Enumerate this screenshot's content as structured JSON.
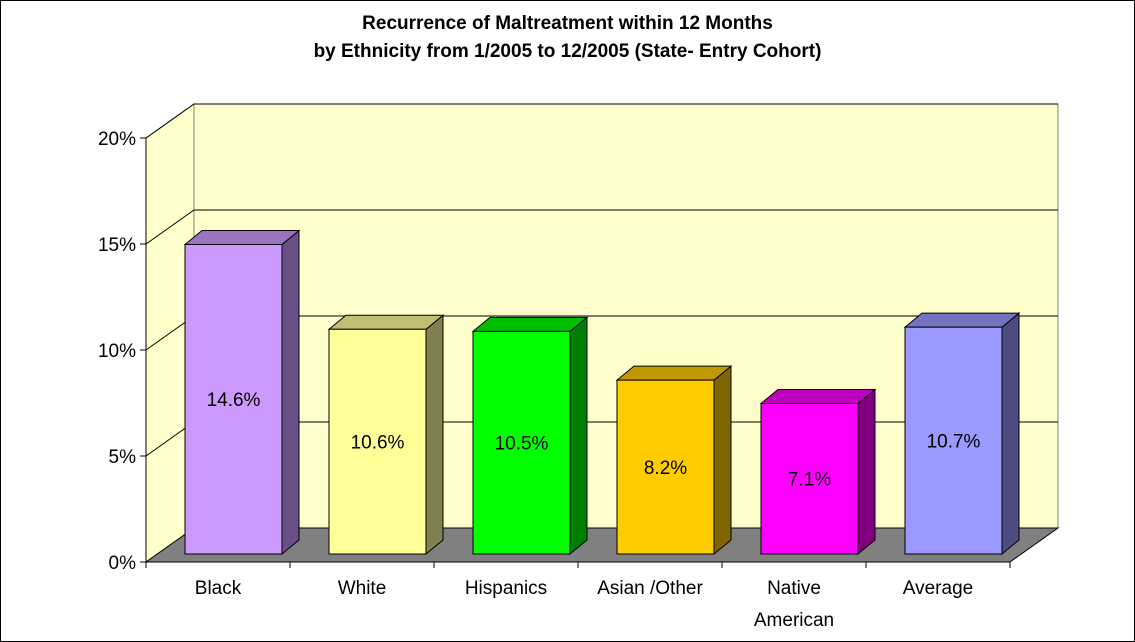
{
  "chart_data": {
    "type": "bar",
    "title_lines": [
      "Recurrence of Maltreatment within 12 Months",
      "by Ethnicity from 1/2005 to 12/2005 (State- Entry Cohort)"
    ],
    "categories": [
      [
        "Black"
      ],
      [
        "White"
      ],
      [
        "Hispanics"
      ],
      [
        "Asian /Other"
      ],
      [
        "Native",
        "American"
      ],
      [
        "Average"
      ]
    ],
    "values": [
      14.6,
      10.6,
      10.5,
      8.2,
      7.1,
      10.7
    ],
    "data_labels": [
      "14.6%",
      "10.6%",
      "10.5%",
      "8.2%",
      "7.1%",
      "10.7%"
    ],
    "bar_colors": [
      {
        "front": "#cc99ff",
        "side": "#6b5088",
        "top": "#9a74c0"
      },
      {
        "front": "#ffff99",
        "side": "#808050",
        "top": "#c0c070"
      },
      {
        "front": "#00ff00",
        "side": "#008000",
        "top": "#00bf00"
      },
      {
        "front": "#ffcc00",
        "side": "#806600",
        "top": "#c09900"
      },
      {
        "front": "#ff00ff",
        "side": "#800080",
        "top": "#c000c0"
      },
      {
        "front": "#9999ff",
        "side": "#4c4c80",
        "top": "#7373c0"
      }
    ],
    "ylim": [
      0,
      20
    ],
    "yticks": [
      0,
      5,
      10,
      15,
      20
    ],
    "ytick_labels": [
      "0%",
      "5%",
      "10%",
      "15%",
      "20%"
    ],
    "xlabel": "",
    "ylabel": "",
    "grid": true,
    "wall_color": "#ffffcc",
    "floor_color": "#808080",
    "legend": "none"
  }
}
